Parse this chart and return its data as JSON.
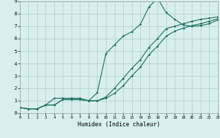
{
  "xlabel": "Humidex (Indice chaleur)",
  "bg_color": "#d8efee",
  "grid_color": "#b5d5d3",
  "line_color": "#1a7060",
  "xlim": [
    0,
    23
  ],
  "ylim": [
    0,
    9
  ],
  "xticks": [
    0,
    1,
    2,
    3,
    4,
    5,
    6,
    7,
    8,
    9,
    10,
    11,
    12,
    13,
    14,
    15,
    16,
    17,
    18,
    19,
    20,
    21,
    22,
    23
  ],
  "yticks": [
    0,
    1,
    2,
    3,
    4,
    5,
    6,
    7,
    8,
    9
  ],
  "line1_x": [
    0,
    1,
    2,
    3,
    4,
    5,
    6,
    7,
    8,
    9,
    10,
    11,
    12,
    13,
    14,
    15,
    16,
    17,
    18,
    19,
    20,
    21,
    22,
    23
  ],
  "line1_y": [
    0.45,
    0.35,
    0.35,
    0.65,
    0.65,
    1.1,
    1.1,
    1.1,
    1.0,
    1.65,
    4.8,
    5.5,
    6.2,
    6.55,
    7.15,
    8.55,
    9.25,
    8.1,
    7.55,
    7.1,
    7.0,
    7.05,
    7.2,
    7.5
  ],
  "line2_x": [
    0,
    1,
    2,
    3,
    4,
    5,
    6,
    7,
    8,
    9,
    10,
    11,
    12,
    13,
    14,
    15,
    16,
    17,
    18,
    19,
    20,
    21,
    22,
    23
  ],
  "line2_y": [
    0.45,
    0.35,
    0.35,
    0.65,
    1.2,
    1.2,
    1.2,
    1.2,
    1.0,
    1.0,
    1.3,
    2.0,
    2.8,
    3.6,
    4.3,
    5.3,
    6.0,
    6.8,
    7.0,
    7.2,
    7.4,
    7.55,
    7.65,
    7.75
  ],
  "line3_x": [
    0,
    1,
    2,
    3,
    4,
    5,
    6,
    7,
    8,
    9,
    10,
    11,
    12,
    13,
    14,
    15,
    16,
    17,
    18,
    19,
    20,
    21,
    22,
    23
  ],
  "line3_y": [
    0.45,
    0.35,
    0.35,
    0.65,
    0.65,
    1.1,
    1.1,
    1.1,
    1.0,
    1.0,
    1.2,
    1.6,
    2.2,
    3.0,
    3.7,
    4.7,
    5.4,
    6.2,
    6.6,
    6.85,
    7.05,
    7.2,
    7.4,
    7.6
  ]
}
